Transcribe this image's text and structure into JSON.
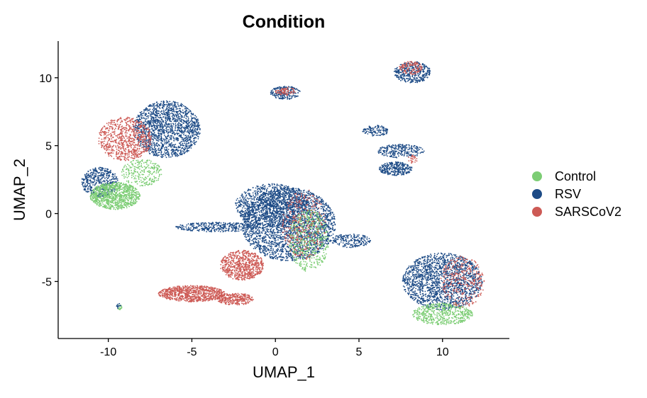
{
  "chart_data": {
    "type": "scatter",
    "title": "Condition",
    "xlabel": "UMAP_1",
    "ylabel": "UMAP_2",
    "xlim": [
      -13,
      14
    ],
    "ylim": [
      -9.2,
      12.7
    ],
    "xticks": [
      -10,
      -5,
      0,
      5,
      10
    ],
    "yticks": [
      -5,
      0,
      5,
      10
    ],
    "xtick_labels": [
      "-10",
      "-5",
      "0",
      "5",
      "10"
    ],
    "ytick_labels": [
      "-5",
      "0",
      "5",
      "10"
    ],
    "grid": false,
    "legend_position": "right",
    "series": [
      {
        "name": "Control",
        "color": "#7ccd74"
      },
      {
        "name": "RSV",
        "color": "#1d4b86"
      },
      {
        "name": "SARSCoV2",
        "color": "#cd5a55"
      }
    ],
    "clusters": [
      {
        "series": "RSV",
        "center": [
          0.8,
          -0.8
        ],
        "radius": [
          2.8,
          2.7
        ],
        "points": 2600
      },
      {
        "series": "RSV",
        "center": [
          -0.2,
          0.6
        ],
        "radius": [
          2.2,
          1.6
        ],
        "points": 900
      },
      {
        "series": "Control",
        "center": [
          2.0,
          -2.0
        ],
        "radius": [
          1.2,
          2.3
        ],
        "points": 500
      },
      {
        "series": "SARSCoV2",
        "center": [
          1.7,
          -0.8
        ],
        "radius": [
          1.3,
          2.6
        ],
        "points": 300
      },
      {
        "series": "RSV",
        "center": [
          4.5,
          -2.0
        ],
        "radius": [
          1.2,
          0.5
        ],
        "points": 200
      },
      {
        "series": "SARSCoV2",
        "center": [
          -2.0,
          -3.8
        ],
        "radius": [
          1.3,
          1.1
        ],
        "points": 700
      },
      {
        "series": "SARSCoV2",
        "center": [
          -5.0,
          -5.9
        ],
        "radius": [
          2.0,
          0.6
        ],
        "points": 850
      },
      {
        "series": "SARSCoV2",
        "center": [
          -2.4,
          -6.3
        ],
        "radius": [
          1.1,
          0.45
        ],
        "points": 300
      },
      {
        "series": "RSV",
        "center": [
          -3.5,
          -1.0
        ],
        "radius": [
          2.5,
          0.35
        ],
        "points": 350
      },
      {
        "series": "RSV",
        "center": [
          -6.5,
          6.2
        ],
        "radius": [
          2.0,
          2.1
        ],
        "points": 1600
      },
      {
        "series": "RSV",
        "center": [
          -10.5,
          2.3
        ],
        "radius": [
          1.1,
          1.1
        ],
        "points": 450
      },
      {
        "series": "Control",
        "center": [
          -9.6,
          1.3
        ],
        "radius": [
          1.5,
          1.0
        ],
        "points": 950
      },
      {
        "series": "SARSCoV2",
        "center": [
          -9.0,
          5.5
        ],
        "radius": [
          1.6,
          1.6
        ],
        "points": 750
      },
      {
        "series": "Control",
        "center": [
          -8.0,
          3.0
        ],
        "radius": [
          1.2,
          1.0
        ],
        "points": 250
      },
      {
        "series": "RSV",
        "center": [
          10.0,
          -5.0
        ],
        "radius": [
          2.4,
          2.1
        ],
        "points": 1700
      },
      {
        "series": "Control",
        "center": [
          10.0,
          -7.4
        ],
        "radius": [
          1.8,
          0.8
        ],
        "points": 500
      },
      {
        "series": "SARSCoV2",
        "center": [
          11.2,
          -5.0
        ],
        "radius": [
          1.3,
          1.9
        ],
        "points": 300
      },
      {
        "series": "RSV",
        "center": [
          8.2,
          10.4
        ],
        "radius": [
          1.1,
          0.8
        ],
        "points": 380
      },
      {
        "series": "SARSCoV2",
        "center": [
          8.1,
          10.7
        ],
        "radius": [
          0.7,
          0.5
        ],
        "points": 120
      },
      {
        "series": "RSV",
        "center": [
          7.2,
          3.3
        ],
        "radius": [
          1.0,
          0.5
        ],
        "points": 300
      },
      {
        "series": "RSV",
        "center": [
          7.5,
          4.6
        ],
        "radius": [
          1.4,
          0.5
        ],
        "points": 250
      },
      {
        "series": "RSV",
        "center": [
          6.0,
          6.1
        ],
        "radius": [
          0.8,
          0.4
        ],
        "points": 120
      },
      {
        "series": "SARSCoV2",
        "center": [
          8.2,
          4.0
        ],
        "radius": [
          0.3,
          0.3
        ],
        "points": 25
      },
      {
        "series": "RSV",
        "center": [
          0.6,
          8.9
        ],
        "radius": [
          0.9,
          0.5
        ],
        "points": 200
      },
      {
        "series": "SARSCoV2",
        "center": [
          0.6,
          9.0
        ],
        "radius": [
          0.6,
          0.3
        ],
        "points": 70
      },
      {
        "series": "Control",
        "center": [
          -9.3,
          -6.9
        ],
        "radius": [
          0.15,
          0.2
        ],
        "points": 15
      },
      {
        "series": "RSV",
        "center": [
          -9.4,
          -6.8
        ],
        "radius": [
          0.15,
          0.2
        ],
        "points": 12
      }
    ]
  }
}
